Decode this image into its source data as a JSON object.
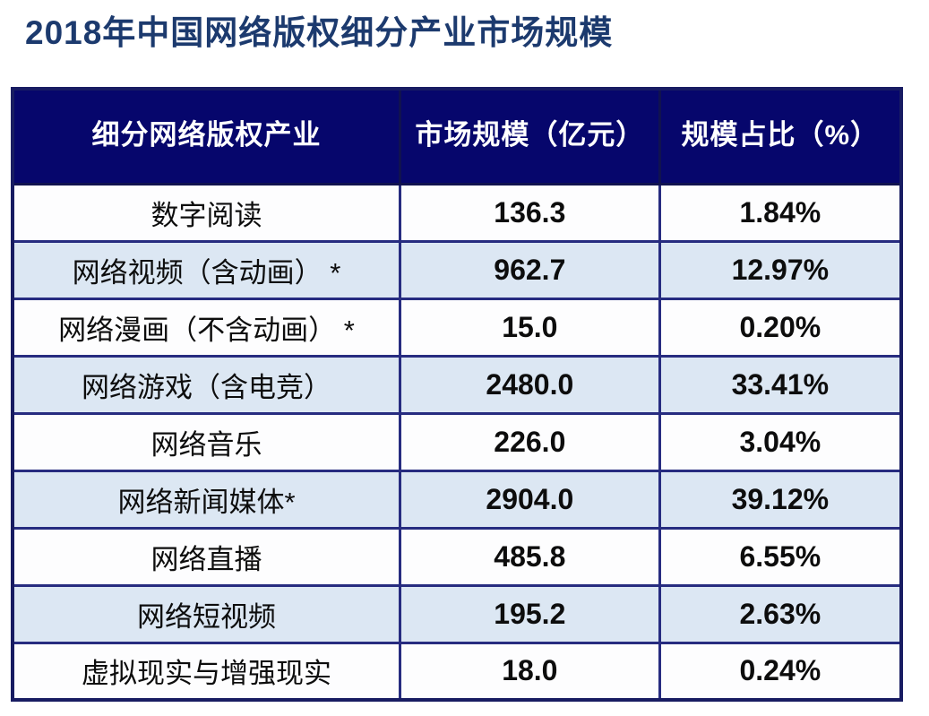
{
  "page": {
    "title": "2018年中国网络版权细分产业市场规模"
  },
  "colors": {
    "title_text": "#1c3a6e",
    "header_bg": "#06066c",
    "header_text": "#ffffff",
    "row_bg_white": "#fdfdfe",
    "row_bg_blue": "#dce7f3",
    "grid_border": "#272c80",
    "outer_border": "#181c62"
  },
  "table": {
    "columns": [
      {
        "label": "细分网络版权产业"
      },
      {
        "label": "市场规模（亿元）"
      },
      {
        "label": "规模占比（%）"
      }
    ],
    "rows": [
      {
        "industry": "数字阅读",
        "market_size": "136.3",
        "share": "1.84%"
      },
      {
        "industry": "网络视频（含动画） *",
        "market_size": "962.7",
        "share": "12.97%"
      },
      {
        "industry": "网络漫画（不含动画） *",
        "market_size": "15.0",
        "share": "0.20%"
      },
      {
        "industry": "网络游戏（含电竞）",
        "market_size": "2480.0",
        "share": "33.41%"
      },
      {
        "industry": "网络音乐",
        "market_size": "226.0",
        "share": "3.04%"
      },
      {
        "industry": "网络新闻媒体*",
        "market_size": "2904.0",
        "share": "39.12%"
      },
      {
        "industry": "网络直播",
        "market_size": "485.8",
        "share": "6.55%"
      },
      {
        "industry": "网络短视频",
        "market_size": "195.2",
        "share": "2.63%"
      },
      {
        "industry": "虚拟现实与增强现实",
        "market_size": "18.0",
        "share": "0.24%"
      }
    ]
  },
  "chart_data": {
    "type": "table",
    "title": "2018年中国网络版权细分产业市场规模",
    "columns": [
      "细分网络版权产业",
      "市场规模（亿元）",
      "规模占比（%）"
    ],
    "categories": [
      "数字阅读",
      "网络视频（含动画）*",
      "网络漫画（不含动画）*",
      "网络游戏（含电竞）",
      "网络音乐",
      "网络新闻媒体*",
      "网络直播",
      "网络短视频",
      "虚拟现实与增强现实"
    ],
    "series": [
      {
        "name": "市场规模（亿元）",
        "values": [
          136.3,
          962.7,
          15.0,
          2480.0,
          226.0,
          2904.0,
          485.8,
          195.2,
          18.0
        ]
      },
      {
        "name": "规模占比（%）",
        "values": [
          1.84,
          12.97,
          0.2,
          33.41,
          3.04,
          39.12,
          6.55,
          2.63,
          0.24
        ]
      }
    ]
  }
}
